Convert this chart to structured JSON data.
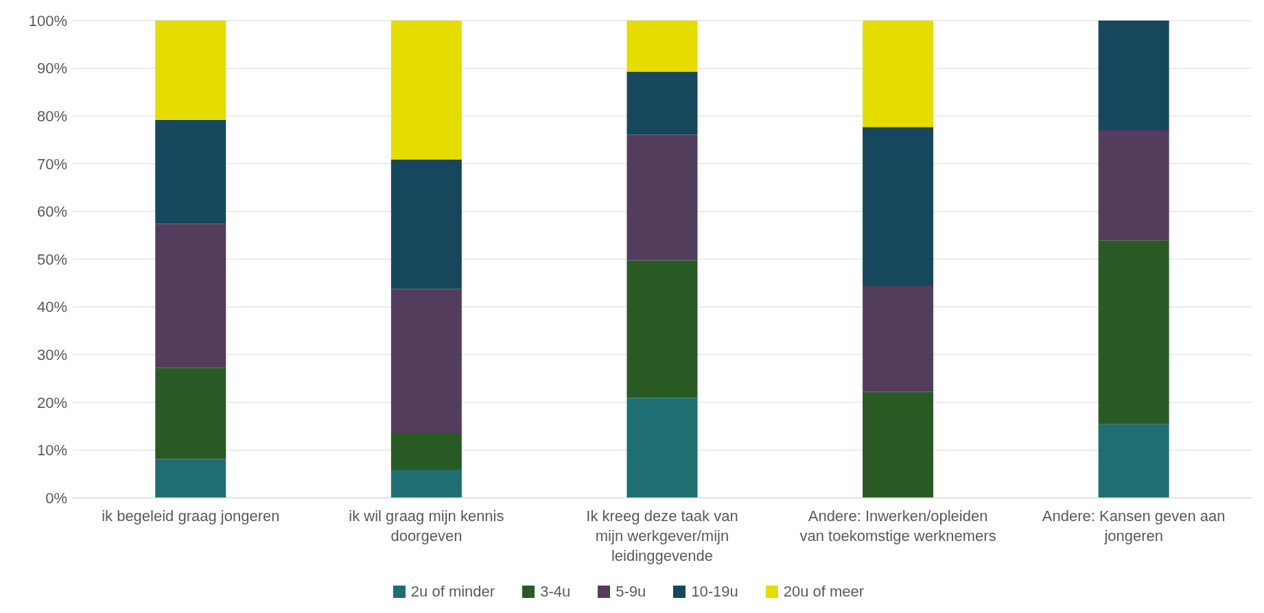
{
  "chart_data": {
    "type": "bar",
    "stacked": true,
    "categories": [
      "ik begeleid graag jongeren",
      "ik wil graag mijn kennis doorgeven",
      "Ik kreeg deze taak van mijn werkgever/mijn leidinggevende",
      "Andere: Inwerken/opleiden van toekomstige werknemers",
      "Andere: Kansen geven aan jongeren"
    ],
    "series": [
      {
        "name": "2u of minder",
        "color": "#1f6e72",
        "values": [
          8.1,
          5.9,
          20.9,
          0,
          15.4
        ]
      },
      {
        "name": "3-4u",
        "color": "#2a5a24",
        "values": [
          19.1,
          7.6,
          28.9,
          22.2,
          38.5
        ]
      },
      {
        "name": "5-9u",
        "color": "#523e5c",
        "values": [
          30.2,
          30.3,
          26.3,
          22.2,
          23.1
        ]
      },
      {
        "name": "10-19u",
        "color": "#17475d",
        "values": [
          21.8,
          27.1,
          13.2,
          33.3,
          23.1
        ]
      },
      {
        "name": "20u of meer",
        "color": "#e5dc00",
        "values": [
          20.8,
          29.1,
          10.7,
          22.3,
          0
        ]
      }
    ],
    "ylim": [
      0,
      100
    ],
    "yticks": [
      {
        "value": 0,
        "label": "0%"
      },
      {
        "value": 10,
        "label": "10%"
      },
      {
        "value": 20,
        "label": "20%"
      },
      {
        "value": 30,
        "label": "30%"
      },
      {
        "value": 40,
        "label": "40%"
      },
      {
        "value": 50,
        "label": "50%"
      },
      {
        "value": 60,
        "label": "60%"
      },
      {
        "value": 70,
        "label": "70%"
      },
      {
        "value": 80,
        "label": "80%"
      },
      {
        "value": 90,
        "label": "90%"
      },
      {
        "value": 100,
        "label": "100%"
      }
    ],
    "grid": "y",
    "legend": "bottom"
  }
}
